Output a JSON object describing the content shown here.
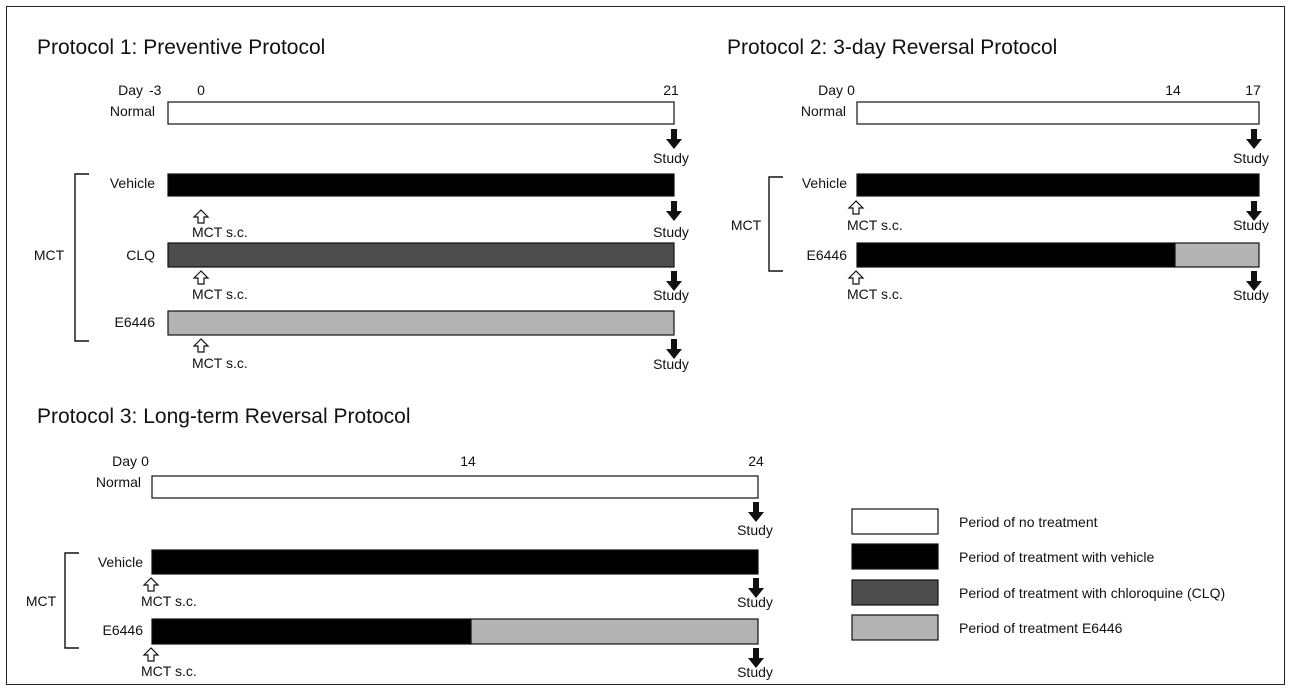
{
  "protocols": [
    {
      "title": "Protocol 1: Preventive Protocol",
      "day_label": "Day",
      "days": [
        "-3",
        "0",
        "21"
      ],
      "group_label": "MCT",
      "rows": [
        {
          "label": "Normal",
          "segments": [
            {
              "fill": "none",
              "from": -3,
              "to": 21
            }
          ],
          "has_mct": false,
          "study_label": "Study"
        },
        {
          "label": "Vehicle",
          "segments": [
            {
              "fill": "vehicle",
              "from": -3,
              "to": 21
            }
          ],
          "has_mct": true,
          "mct_label": "MCT s.c.",
          "study_label": "Study"
        },
        {
          "label": "CLQ",
          "segments": [
            {
              "fill": "clq",
              "from": -3,
              "to": 21
            }
          ],
          "has_mct": true,
          "mct_label": "MCT s.c.",
          "study_label": "Study"
        },
        {
          "label": "E6446",
          "segments": [
            {
              "fill": "e6446",
              "from": -3,
              "to": 21
            }
          ],
          "has_mct": true,
          "mct_label": "MCT s.c.",
          "study_label": "Study"
        }
      ]
    },
    {
      "title": "Protocol 2: 3-day Reversal Protocol",
      "day_label": "Day",
      "days": [
        "0",
        "14",
        "17"
      ],
      "group_label": "MCT",
      "rows": [
        {
          "label": "Normal",
          "segments": [
            {
              "fill": "none",
              "from": 0,
              "to": 17
            }
          ],
          "has_mct": false,
          "study_label": "Study"
        },
        {
          "label": "Vehicle",
          "segments": [
            {
              "fill": "vehicle",
              "from": 0,
              "to": 17
            }
          ],
          "has_mct": true,
          "mct_label": "MCT s.c.",
          "study_label": "Study"
        },
        {
          "label": "E6446",
          "segments": [
            {
              "fill": "vehicle",
              "from": 0,
              "to": 14
            },
            {
              "fill": "e6446",
              "from": 14,
              "to": 17
            }
          ],
          "has_mct": true,
          "mct_label": "MCT s.c.",
          "study_label": "Study"
        }
      ]
    },
    {
      "title": "Protocol 3: Long-term Reversal Protocol",
      "day_label": "Day",
      "days": [
        "0",
        "14",
        "24"
      ],
      "group_label": "MCT",
      "rows": [
        {
          "label": "Normal",
          "segments": [
            {
              "fill": "none",
              "from": 0,
              "to": 24
            }
          ],
          "has_mct": false,
          "study_label": "Study"
        },
        {
          "label": "Vehicle",
          "segments": [
            {
              "fill": "vehicle",
              "from": 0,
              "to": 24
            }
          ],
          "has_mct": true,
          "mct_label": "MCT s.c.",
          "study_label": "Study"
        },
        {
          "label": "E6446",
          "segments": [
            {
              "fill": "vehicle",
              "from": 0,
              "to": 14
            },
            {
              "fill": "e6446",
              "from": 14,
              "to": 24
            }
          ],
          "has_mct": true,
          "mct_label": "MCT s.c.",
          "study_label": "Study"
        }
      ]
    }
  ],
  "legend": [
    {
      "key": "none",
      "label": "Period of no treatment",
      "color": "#ffffff"
    },
    {
      "key": "vehicle",
      "label": "Period of treatment with vehicle",
      "color": "#000000"
    },
    {
      "key": "clq",
      "label": "Period of treatment with chloroquine (CLQ)",
      "color": "#4d4d4d"
    },
    {
      "key": "e6446",
      "label": "Period of treatment E6446",
      "color": "#b3b3b3"
    }
  ]
}
